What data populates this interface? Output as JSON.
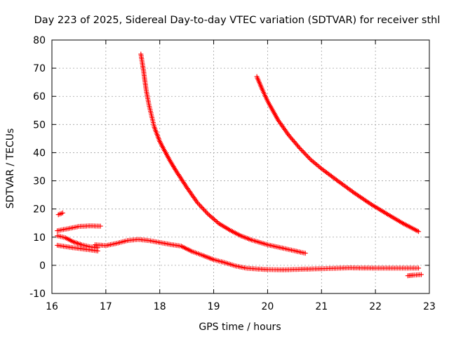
{
  "chart_data": {
    "type": "scatter",
    "title": "Day 223 of 2025, Sidereal Day-to-day VTEC variation (SDTVAR) for receiver sthl",
    "xlabel": "GPS time / hours",
    "ylabel": "SDTVAR / TECUs",
    "xlim": [
      16,
      23
    ],
    "ylim": [
      -10,
      80
    ],
    "xticks": [
      "16",
      "17",
      "18",
      "19",
      "20",
      "21",
      "22",
      "23"
    ],
    "yticks": [
      "-10",
      "0",
      "10",
      "20",
      "30",
      "40",
      "50",
      "60",
      "70",
      "80"
    ],
    "grid": true,
    "marker": "+",
    "marker_color": "#ff0000",
    "series": [
      {
        "name": "track-a-upper",
        "x": [
          16.1,
          16.3,
          16.5,
          16.7,
          16.9
        ],
        "y": [
          12.3,
          13.0,
          13.8,
          14.0,
          13.9
        ]
      },
      {
        "name": "track-a-blip",
        "x": [
          16.12,
          16.2
        ],
        "y": [
          18.0,
          18.6
        ]
      },
      {
        "name": "track-a-lower",
        "x": [
          16.1,
          16.25,
          16.4,
          16.55,
          16.7,
          16.85
        ],
        "y": [
          10.5,
          9.8,
          8.3,
          7.3,
          6.6,
          6.2
        ]
      },
      {
        "name": "track-a-bottom",
        "x": [
          16.1,
          16.3,
          16.5,
          16.7,
          16.85
        ],
        "y": [
          7.1,
          6.5,
          6.0,
          5.5,
          5.1
        ]
      },
      {
        "name": "track-b",
        "x": [
          16.8,
          17.0,
          17.2,
          17.4,
          17.6,
          17.8,
          18.0,
          18.2,
          18.4,
          18.6,
          18.8,
          19.0,
          19.2,
          19.4,
          19.6,
          19.8,
          20.0,
          20.3,
          20.6,
          21.0,
          21.5,
          22.0,
          22.5,
          22.8
        ],
        "y": [
          7.3,
          7.0,
          7.8,
          8.8,
          9.2,
          8.8,
          8.1,
          7.4,
          6.8,
          4.9,
          3.5,
          2.0,
          1.0,
          -0.2,
          -1.0,
          -1.3,
          -1.5,
          -1.6,
          -1.4,
          -1.2,
          -0.9,
          -1.0,
          -1.0,
          -1.0
        ]
      },
      {
        "name": "track-b-tail",
        "x": [
          22.6,
          22.7,
          22.85
        ],
        "y": [
          -3.7,
          -3.5,
          -3.3
        ]
      },
      {
        "name": "track-c",
        "x": [
          17.65,
          17.7,
          17.75,
          17.8,
          17.85,
          17.9,
          18.0,
          18.1,
          18.2,
          18.3,
          18.5,
          18.7,
          18.9,
          19.1,
          19.3,
          19.5,
          19.7,
          20.0,
          20.3,
          20.7
        ],
        "y": [
          75,
          69,
          62,
          57,
          53,
          49,
          44,
          40.3,
          36.8,
          33.6,
          27.7,
          22.2,
          18.1,
          14.8,
          12.5,
          10.5,
          9.0,
          7.3,
          6.0,
          4.3
        ]
      },
      {
        "name": "track-d",
        "x": [
          19.8,
          19.9,
          20.0,
          20.2,
          20.4,
          20.6,
          20.8,
          21.0,
          21.3,
          21.6,
          21.9,
          22.2,
          22.5,
          22.8
        ],
        "y": [
          67,
          62.5,
          58.3,
          51.4,
          46.0,
          41.5,
          37.5,
          34.3,
          30.0,
          25.8,
          21.9,
          18.4,
          15.0,
          12.0
        ]
      }
    ]
  }
}
